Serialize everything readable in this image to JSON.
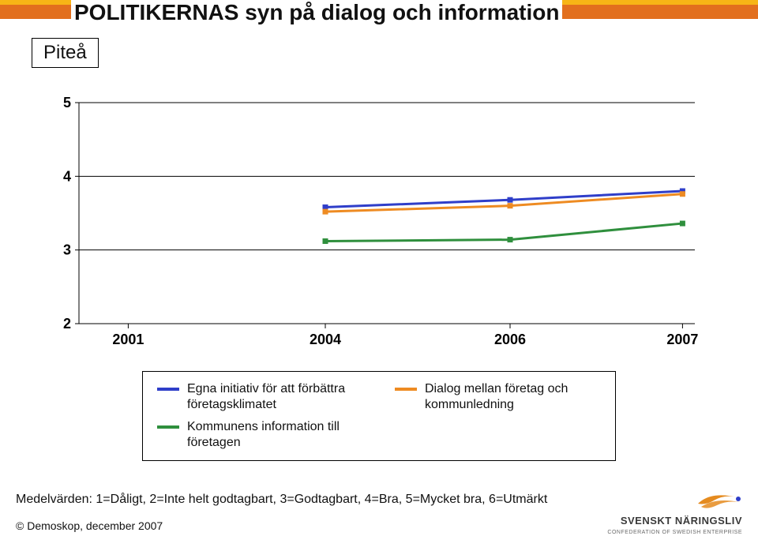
{
  "header": {
    "title": "POLITIKERNAS syn på dialog och information",
    "subtitle": "Piteå"
  },
  "chart": {
    "type": "line",
    "background_color": "#ffffff",
    "x_categories": [
      "2001",
      "2004",
      "2006",
      "2007"
    ],
    "y_ticks": [
      2,
      3,
      4,
      5
    ],
    "ylim": [
      2,
      5
    ],
    "x_extent": [
      2001,
      2007
    ],
    "axis_line_color": "#000000",
    "axis_line_width": 1,
    "grid_color": "#000000",
    "grid_width": 1,
    "tick_fontsize": 18,
    "axis_fontcolor": "#000000",
    "line_width": 3,
    "series": [
      {
        "name": "egna-initiativ",
        "label": "Egna initiativ för att förbättra företagsklimatet",
        "color": "#2f3ec9",
        "points": [
          {
            "x": 2004,
            "y": 3.58
          },
          {
            "x": 2006,
            "y": 3.68
          },
          {
            "x": 2007,
            "y": 3.8
          }
        ],
        "marker": "square",
        "marker_size": 7
      },
      {
        "name": "dialog",
        "label": "Dialog mellan företag och kommunledning",
        "color": "#ee8b22",
        "points": [
          {
            "x": 2004,
            "y": 3.52
          },
          {
            "x": 2006,
            "y": 3.6
          },
          {
            "x": 2007,
            "y": 3.76
          }
        ],
        "marker": "square",
        "marker_size": 7
      },
      {
        "name": "kommunens-information",
        "label": "Kommunens information till företagen",
        "color": "#2f8f3d",
        "points": [
          {
            "x": 2004,
            "y": 3.12
          },
          {
            "x": 2006,
            "y": 3.14
          },
          {
            "x": 2007,
            "y": 3.36
          }
        ],
        "marker": "square",
        "marker_size": 7
      }
    ]
  },
  "legend": {
    "border_color": "#000000",
    "swatch_height": 4,
    "col1": [
      {
        "key": "egna-initiativ",
        "label": "Egna initiativ för att förbättra företagsklimatet",
        "color": "#2f3ec9"
      },
      {
        "key": "kommunens-information",
        "label": "Kommunens information till företagen",
        "color": "#2f8f3d"
      }
    ],
    "col2": [
      {
        "key": "dialog",
        "label": "Dialog mellan företag och kommunledning",
        "color": "#ee8b22"
      }
    ]
  },
  "footer": {
    "note": "Medelvärden: 1=Dåligt, 2=Inte helt godtagbart, 3=Godtagbart, 4=Bra, 5=Mycket bra, 6=Utmärkt",
    "copyright": "© Demoskop, december 2007"
  },
  "brand": {
    "name": "SVENSKT NÄRINGSLIV",
    "tagline": "CONFEDERATION OF SWEDISH ENTERPRISE",
    "mark_colors": {
      "wing": "#e58b1f",
      "dot": "#2f3ec9"
    }
  },
  "stripe": {
    "row1_color": "#f7b516",
    "row2_color": "#e26f1e"
  }
}
